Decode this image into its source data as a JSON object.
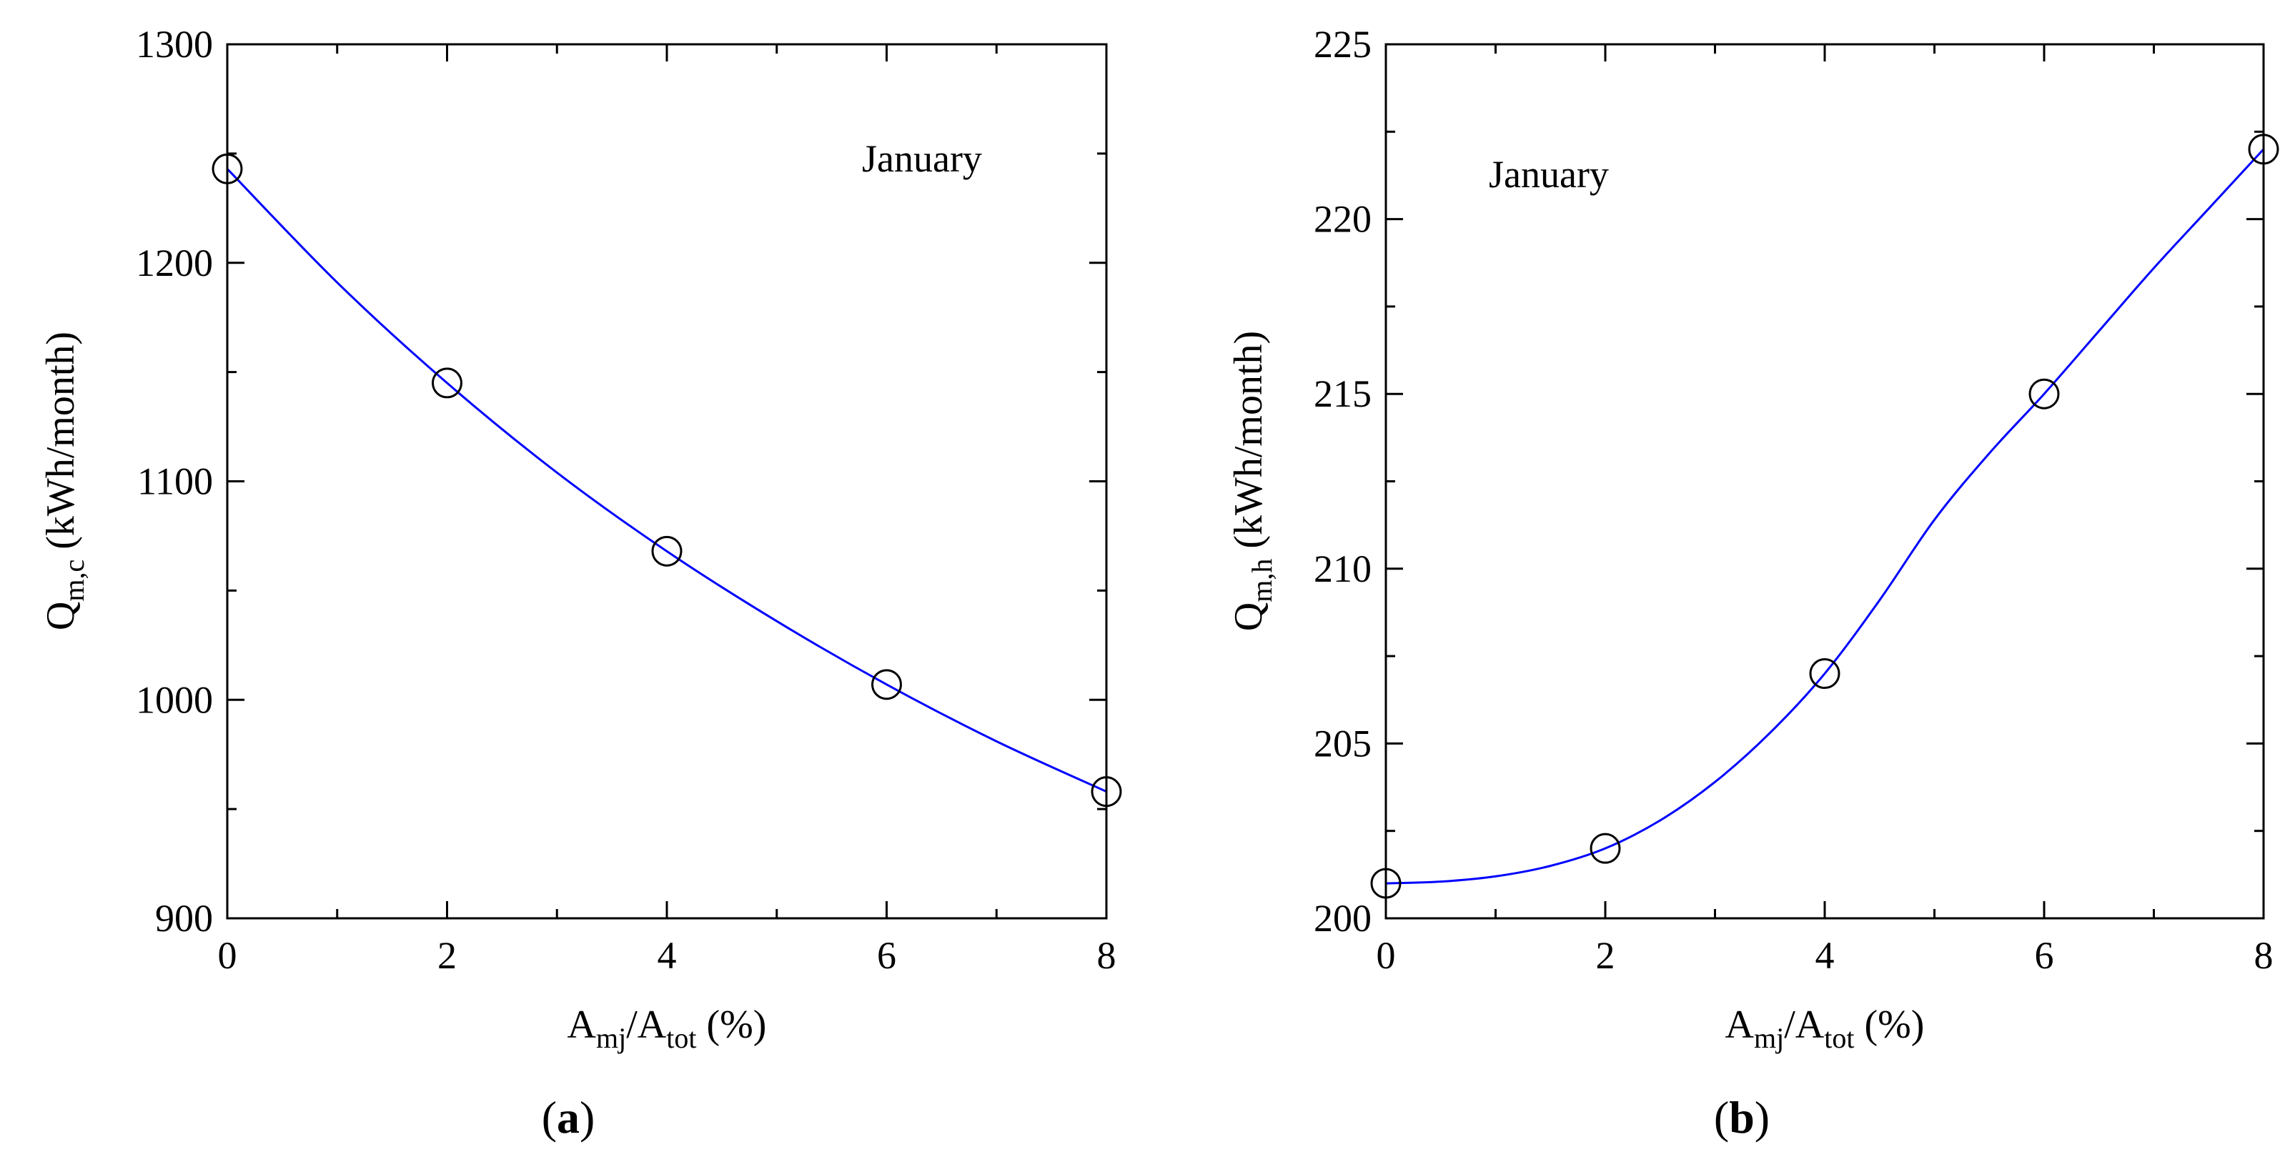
{
  "chart_data": [
    {
      "type": "scatter",
      "panel": "a",
      "caption": {
        "open": "(",
        "letter": "a",
        "close": ")"
      },
      "annotation": "January",
      "xlabel": {
        "base1": "A",
        "sub1": "mj",
        "slash": "/",
        "base2": "A",
        "sub2": "tot",
        "unit": " (%)"
      },
      "ylabel": {
        "base": "Q",
        "sub": "m,c",
        "unit": " (kWh/month)"
      },
      "xlim": [
        0,
        8
      ],
      "ylim": [
        900,
        1300
      ],
      "xticks": [
        0,
        2,
        4,
        6,
        8
      ],
      "yticks": [
        900,
        1000,
        1100,
        1200,
        1300
      ],
      "x_minor_step": 1,
      "y_minor_step": 50,
      "series": [
        {
          "name": "data",
          "marker": "open-circle",
          "x": [
            0,
            2,
            4,
            6,
            8
          ],
          "y": [
            1243,
            1145,
            1068,
            1007,
            958
          ]
        },
        {
          "name": "fit",
          "style": "line",
          "color": "#0000ff",
          "x": [
            0,
            1,
            2,
            3,
            4,
            5,
            6,
            7,
            8
          ],
          "y": [
            1243,
            1191,
            1145,
            1104,
            1068,
            1036,
            1007,
            981,
            958
          ]
        }
      ]
    },
    {
      "type": "scatter",
      "panel": "b",
      "caption": {
        "open": "(",
        "letter": "b",
        "close": ")"
      },
      "annotation": "January",
      "xlabel": {
        "base1": "A",
        "sub1": "mj",
        "slash": "/",
        "base2": "A",
        "sub2": "tot",
        "unit": " (%)"
      },
      "ylabel": {
        "base": "Q",
        "sub": "m,h",
        "unit": " (kWh/month)"
      },
      "xlim": [
        0,
        8
      ],
      "ylim": [
        200,
        225
      ],
      "xticks": [
        0,
        2,
        4,
        6,
        8
      ],
      "yticks": [
        200,
        205,
        210,
        215,
        220,
        225
      ],
      "x_minor_step": 1,
      "y_minor_step": 2.5,
      "series": [
        {
          "name": "data",
          "marker": "open-circle",
          "x": [
            0,
            2,
            4,
            6,
            8
          ],
          "y": [
            201,
            202,
            207,
            215,
            222
          ]
        },
        {
          "name": "fit",
          "style": "line",
          "color": "#0000ff",
          "x": [
            0,
            0.5,
            1,
            1.5,
            2,
            2.5,
            3,
            3.5,
            4,
            4.5,
            5,
            5.5,
            6,
            6.5,
            7,
            7.5,
            8
          ],
          "y": [
            201,
            201.05,
            201.2,
            201.5,
            202,
            202.8,
            203.9,
            205.3,
            207,
            209.1,
            211.4,
            213.3,
            215,
            216.8,
            218.6,
            220.3,
            222
          ]
        }
      ]
    }
  ]
}
